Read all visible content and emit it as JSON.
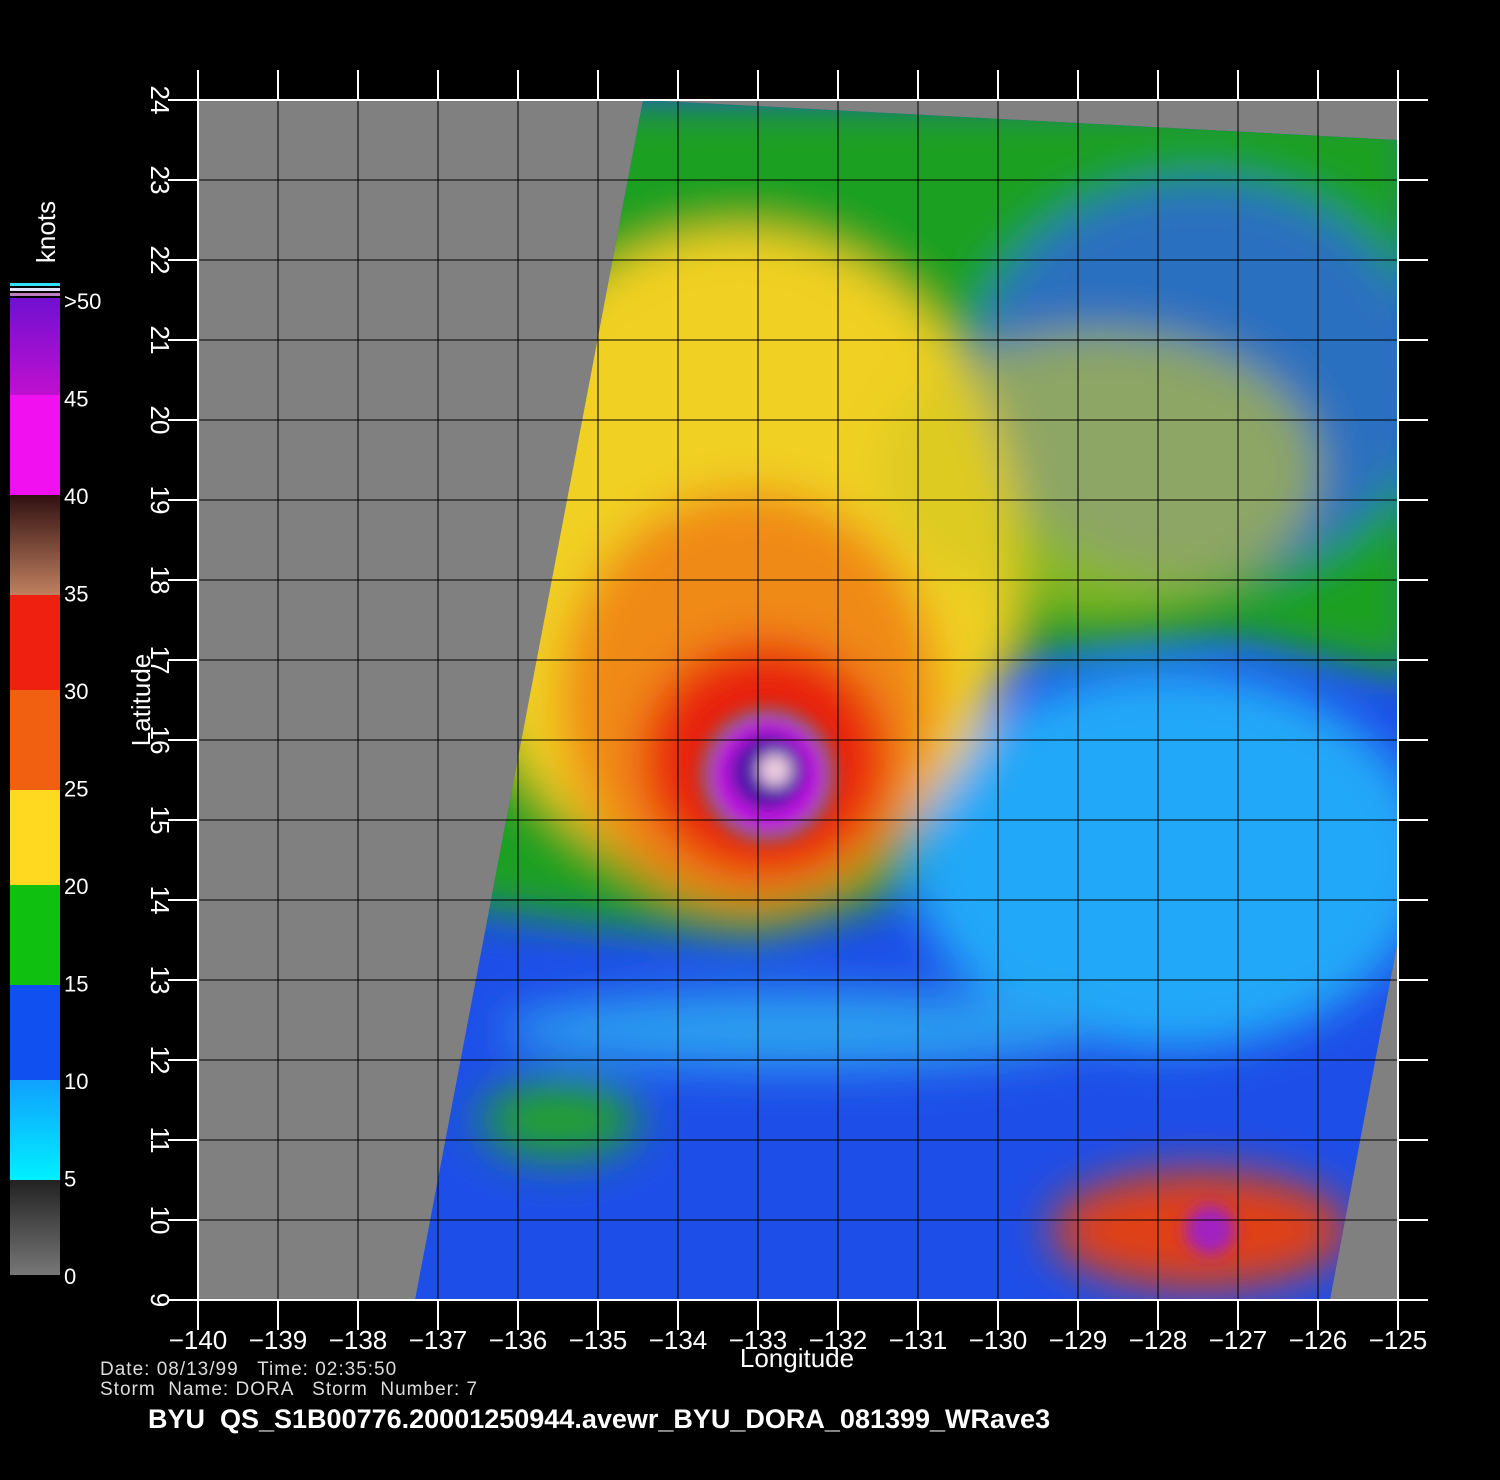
{
  "colorbar": {
    "title": "knots",
    "labels": [
      "0",
      "5",
      "10",
      "15",
      "20",
      "25",
      "30",
      "35",
      "40",
      "45",
      ">50"
    ]
  },
  "x_axis": {
    "label": "Longitude",
    "ticks": [
      "−140",
      "−139",
      "−138",
      "−137",
      "−136",
      "−135",
      "−134",
      "−133",
      "−132",
      "−131",
      "−130",
      "−129",
      "−128",
      "−127",
      "−126",
      "−125"
    ]
  },
  "y_axis": {
    "label": "Latitude",
    "ticks": [
      "9",
      "10",
      "11",
      "12",
      "13",
      "14",
      "15",
      "16",
      "17",
      "18",
      "19",
      "20",
      "21",
      "22",
      "23",
      "24"
    ]
  },
  "info": {
    "line1": "Date: 08/13/99   Time: 02:35:50",
    "line2": "Storm  Name: DORA   Storm  Number: 7"
  },
  "footer": "BYU  QS_S1B00776.20001250944.avewr_BYU_DORA_081399_WRave3"
}
